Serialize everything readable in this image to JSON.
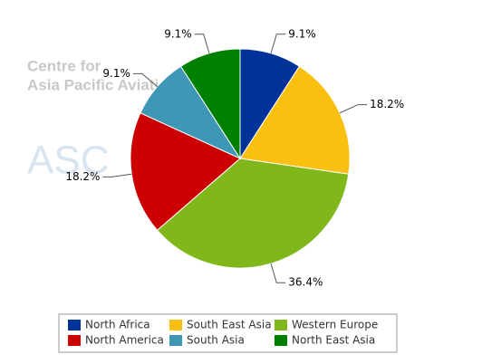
{
  "chart_data": {
    "type": "pie",
    "watermark": [
      "Centre for",
      "Asia Pacific Aviation",
      "ASC"
    ],
    "categories": [
      "North Africa",
      "South East Asia",
      "Western Europe",
      "North America",
      "South Asia",
      "North East Asia"
    ],
    "values": [
      9.1,
      18.2,
      36.4,
      18.2,
      9.1,
      9.1
    ],
    "value_labels": [
      "9.1%",
      "18.2%",
      "36.4%",
      "18.2%",
      "9.1%",
      "9.1%"
    ],
    "colors": [
      "#003399",
      "#f9c00f",
      "#80b81c",
      "#cc0000",
      "#3e98b5",
      "#008000"
    ],
    "legend": "bottom"
  }
}
